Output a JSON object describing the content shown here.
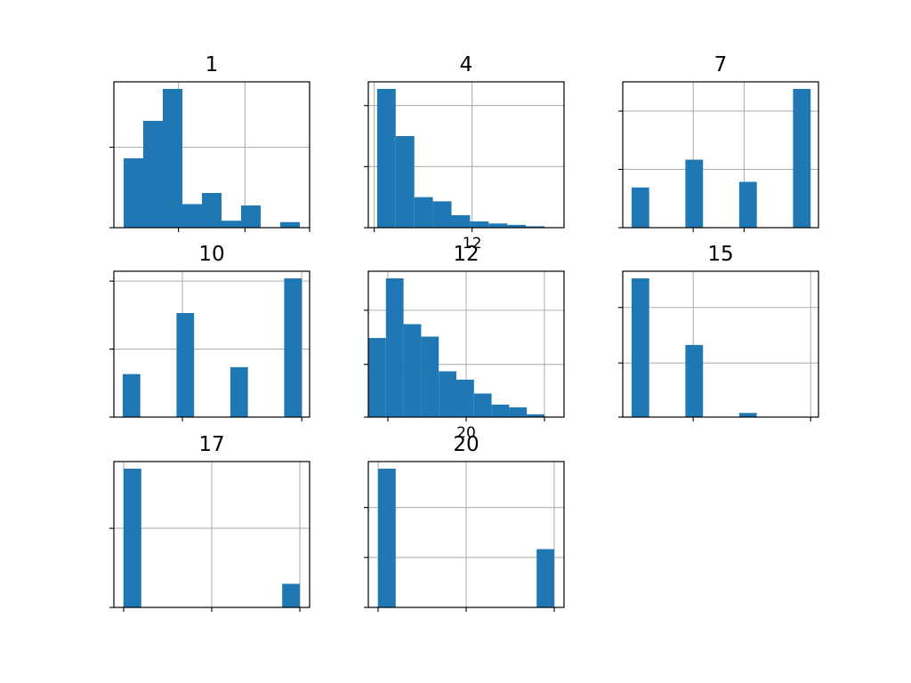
{
  "figure": {
    "bar_color": "#1f77b4",
    "grid_color": "#b0b0b0"
  },
  "chart_data": [
    {
      "type": "bar",
      "title": "1",
      "grid": true,
      "xlim": [
        0,
        10
      ],
      "ylim": [
        0,
        1
      ],
      "x_ticks": [
        {
          "value": 3.3,
          "label": ""
        },
        {
          "value": 6.7,
          "label": ""
        },
        {
          "value": 10,
          "label": ""
        }
      ],
      "y_ticks": [
        {
          "value": 0,
          "label": ""
        },
        {
          "value": 0.58,
          "label": ""
        }
      ],
      "bins": [
        {
          "x0": 0.5,
          "x1": 1.5,
          "value": 0.5
        },
        {
          "x0": 1.5,
          "x1": 2.5,
          "value": 0.77
        },
        {
          "x0": 2.5,
          "x1": 3.5,
          "value": 1.0
        },
        {
          "x0": 3.5,
          "x1": 4.5,
          "value": 0.17
        },
        {
          "x0": 4.5,
          "x1": 5.5,
          "value": 0.25
        },
        {
          "x0": 5.5,
          "x1": 6.5,
          "value": 0.05
        },
        {
          "x0": 6.5,
          "x1": 7.5,
          "value": 0.16
        },
        {
          "x0": 7.5,
          "x1": 8.5,
          "value": 0.0
        },
        {
          "x0": 8.5,
          "x1": 9.5,
          "value": 0.04
        }
      ]
    },
    {
      "type": "bar",
      "title": "4",
      "grid": true,
      "xlim": [
        0,
        10
      ],
      "ylim": [
        0,
        1
      ],
      "x_ticks": [
        {
          "value": 0.3,
          "label": ""
        },
        {
          "value": 5.3,
          "label": "12"
        }
      ],
      "y_ticks": [
        {
          "value": 0,
          "label": ""
        },
        {
          "value": 0.44,
          "label": ""
        },
        {
          "value": 0.88,
          "label": ""
        }
      ],
      "bins": [
        {
          "x0": 0.45,
          "x1": 1.4,
          "value": 1.0
        },
        {
          "x0": 1.4,
          "x1": 2.35,
          "value": 0.66
        },
        {
          "x0": 2.35,
          "x1": 3.3,
          "value": 0.22
        },
        {
          "x0": 3.3,
          "x1": 4.25,
          "value": 0.19
        },
        {
          "x0": 4.25,
          "x1": 5.2,
          "value": 0.09
        },
        {
          "x0": 5.2,
          "x1": 6.15,
          "value": 0.045
        },
        {
          "x0": 6.15,
          "x1": 7.1,
          "value": 0.03
        },
        {
          "x0": 7.1,
          "x1": 8.05,
          "value": 0.02
        },
        {
          "x0": 8.05,
          "x1": 9.0,
          "value": 0.01
        }
      ]
    },
    {
      "type": "bar",
      "title": "7",
      "grid": true,
      "xlim": [
        0,
        10
      ],
      "ylim": [
        0,
        1
      ],
      "x_ticks": [
        {
          "value": 3.6,
          "label": ""
        },
        {
          "value": 6.2,
          "label": ""
        }
      ],
      "y_ticks": [
        {
          "value": 0,
          "label": ""
        },
        {
          "value": 0.42,
          "label": ""
        },
        {
          "value": 0.84,
          "label": ""
        }
      ],
      "bins": [
        {
          "x0": 0.45,
          "x1": 1.35,
          "value": 0.29
        },
        {
          "x0": 3.2,
          "x1": 4.1,
          "value": 0.49
        },
        {
          "x0": 5.95,
          "x1": 6.85,
          "value": 0.33
        },
        {
          "x0": 8.7,
          "x1": 9.6,
          "value": 1.0
        }
      ]
    },
    {
      "type": "bar",
      "title": "10",
      "grid": true,
      "xlim": [
        0,
        10
      ],
      "ylim": [
        0,
        1
      ],
      "x_ticks": [
        {
          "value": 3.5,
          "label": ""
        },
        {
          "value": 9.6,
          "label": ""
        }
      ],
      "y_ticks": [
        {
          "value": 0,
          "label": ""
        },
        {
          "value": 0.49,
          "label": ""
        },
        {
          "value": 0.98,
          "label": ""
        }
      ],
      "bins": [
        {
          "x0": 0.45,
          "x1": 1.35,
          "value": 0.31
        },
        {
          "x0": 3.2,
          "x1": 4.1,
          "value": 0.75
        },
        {
          "x0": 5.95,
          "x1": 6.85,
          "value": 0.36
        },
        {
          "x0": 8.7,
          "x1": 9.6,
          "value": 1.0
        }
      ]
    },
    {
      "type": "bar",
      "title": "12",
      "grid": true,
      "xlim": [
        0,
        10
      ],
      "ylim": [
        0,
        1
      ],
      "x_ticks": [
        {
          "value": 1.0,
          "label": ""
        },
        {
          "value": 5.0,
          "label": "20"
        },
        {
          "value": 9.0,
          "label": ""
        }
      ],
      "y_ticks": [
        {
          "value": 0,
          "label": ""
        },
        {
          "value": 0.38,
          "label": ""
        },
        {
          "value": 0.77,
          "label": ""
        }
      ],
      "bins": [
        {
          "x0": 0.0,
          "x1": 0.9,
          "value": 0.57
        },
        {
          "x0": 0.9,
          "x1": 1.8,
          "value": 1.0
        },
        {
          "x0": 1.8,
          "x1": 2.7,
          "value": 0.67
        },
        {
          "x0": 2.7,
          "x1": 3.6,
          "value": 0.58
        },
        {
          "x0": 3.6,
          "x1": 4.5,
          "value": 0.33
        },
        {
          "x0": 4.5,
          "x1": 5.4,
          "value": 0.27
        },
        {
          "x0": 5.4,
          "x1": 6.3,
          "value": 0.17
        },
        {
          "x0": 6.3,
          "x1": 7.2,
          "value": 0.09
        },
        {
          "x0": 7.2,
          "x1": 8.1,
          "value": 0.07
        },
        {
          "x0": 8.1,
          "x1": 9.0,
          "value": 0.02
        }
      ]
    },
    {
      "type": "bar",
      "title": "15",
      "grid": true,
      "xlim": [
        0,
        10
      ],
      "ylim": [
        0,
        1
      ],
      "x_ticks": [
        {
          "value": 3.6,
          "label": ""
        },
        {
          "value": 9.6,
          "label": ""
        }
      ],
      "y_ticks": [
        {
          "value": 0,
          "label": ""
        },
        {
          "value": 0.39,
          "label": ""
        },
        {
          "value": 0.79,
          "label": ""
        }
      ],
      "bins": [
        {
          "x0": 0.45,
          "x1": 1.35,
          "value": 1.0
        },
        {
          "x0": 3.2,
          "x1": 4.1,
          "value": 0.52
        },
        {
          "x0": 5.95,
          "x1": 6.85,
          "value": 0.03
        }
      ]
    },
    {
      "type": "bar",
      "title": "17",
      "grid": true,
      "xlim": [
        0,
        10
      ],
      "ylim": [
        0,
        1
      ],
      "x_ticks": [
        {
          "value": 0.5,
          "label": ""
        },
        {
          "value": 5.0,
          "label": ""
        },
        {
          "value": 9.5,
          "label": ""
        }
      ],
      "y_ticks": [
        {
          "value": 0,
          "label": ""
        },
        {
          "value": 0.57,
          "label": ""
        }
      ],
      "bins": [
        {
          "x0": 0.5,
          "x1": 1.4,
          "value": 1.0
        },
        {
          "x0": 8.6,
          "x1": 9.5,
          "value": 0.17
        }
      ]
    },
    {
      "type": "bar",
      "title": "20",
      "grid": true,
      "xlim": [
        0,
        10
      ],
      "ylim": [
        0,
        1
      ],
      "x_ticks": [
        {
          "value": 0.5,
          "label": ""
        },
        {
          "value": 5.0,
          "label": ""
        },
        {
          "value": 9.5,
          "label": ""
        }
      ],
      "y_ticks": [
        {
          "value": 0,
          "label": ""
        },
        {
          "value": 0.36,
          "label": ""
        },
        {
          "value": 0.72,
          "label": ""
        }
      ],
      "bins": [
        {
          "x0": 0.5,
          "x1": 1.4,
          "value": 1.0
        },
        {
          "x0": 8.6,
          "x1": 9.5,
          "value": 0.42
        }
      ]
    }
  ]
}
